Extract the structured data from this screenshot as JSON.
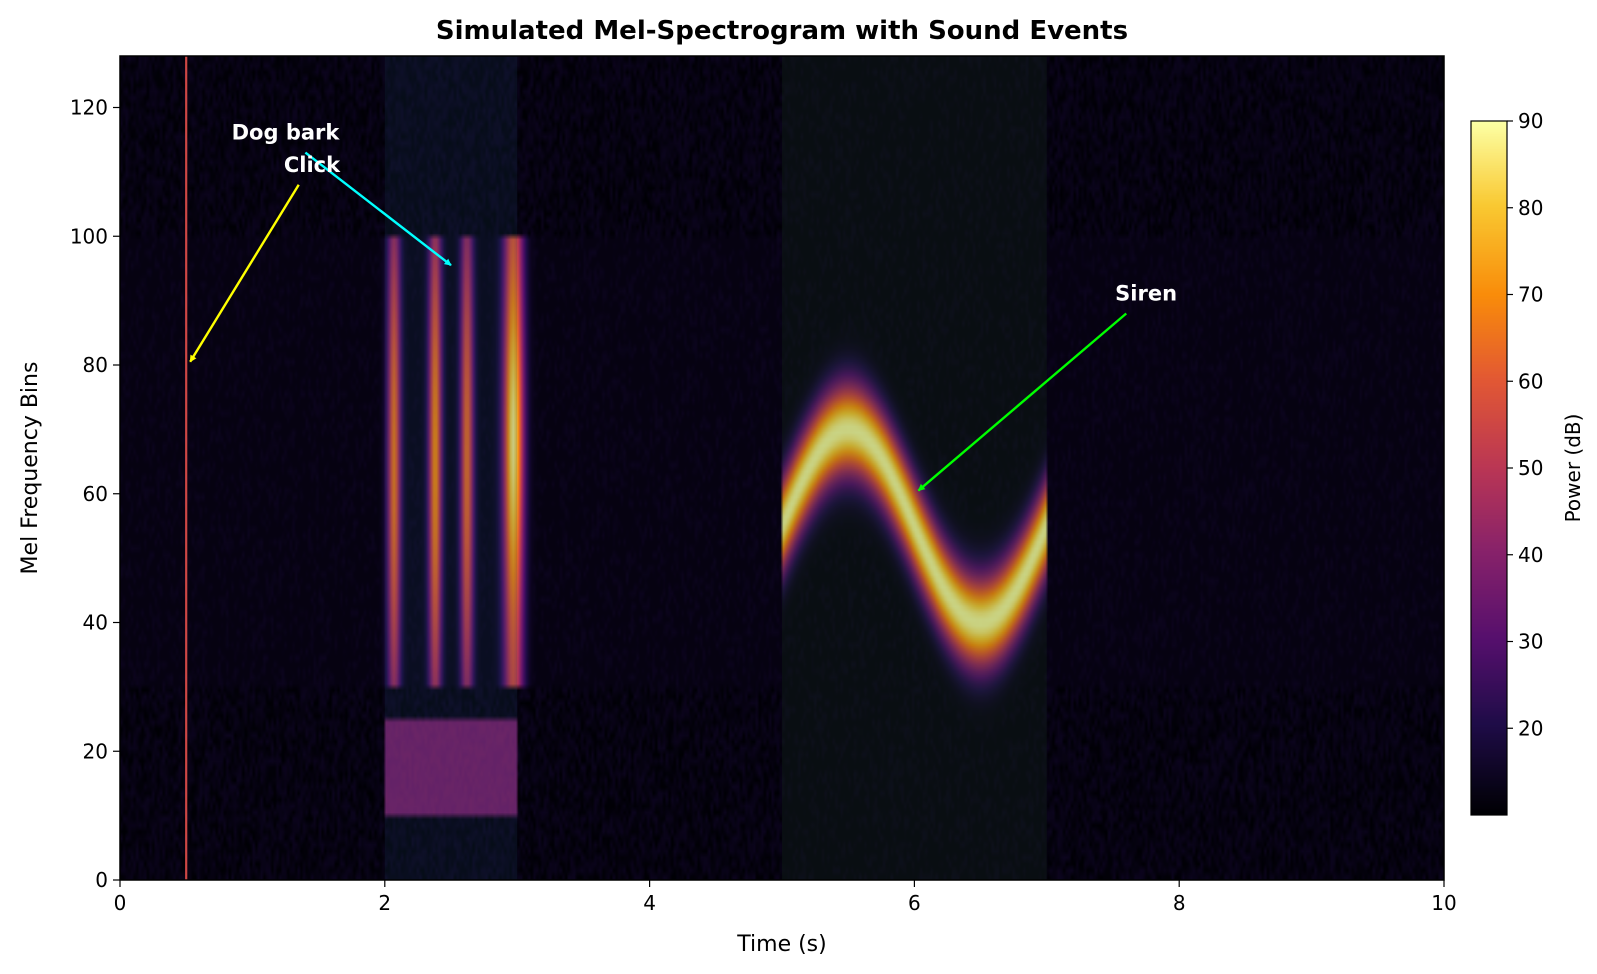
{
  "chart_data": {
    "type": "heatmap",
    "title": "Simulated Mel-Spectrogram with Sound Events",
    "xlabel": "Time (s)",
    "ylabel": "Mel Frequency Bins",
    "xlim": [
      0,
      10
    ],
    "ylim": [
      0,
      128
    ],
    "x_ticks": [
      "0",
      "2",
      "4",
      "6",
      "8",
      "10"
    ],
    "y_ticks": [
      "0",
      "20",
      "40",
      "60",
      "80",
      "100",
      "120"
    ],
    "colormap": "inferno",
    "background_db": 12,
    "colorbar": {
      "label": "Power (dB)",
      "range": [
        10,
        90
      ],
      "ticks": [
        "20",
        "30",
        "40",
        "50",
        "60",
        "70",
        "80",
        "90"
      ]
    },
    "events": [
      {
        "kind": "click",
        "time": 0.5,
        "bins": [
          0,
          128
        ],
        "db": 55
      },
      {
        "kind": "bark-harmonics",
        "times": [
          2.07,
          2.38,
          2.62,
          2.97
        ],
        "bins": [
          30,
          100
        ],
        "db_peak": [
          68,
          72,
          66,
          88
        ]
      },
      {
        "kind": "bark-low-band",
        "time_range": [
          2.0,
          3.0
        ],
        "bins": [
          10,
          25
        ],
        "db": 38
      },
      {
        "kind": "siren",
        "time_range": [
          5.0,
          7.0
        ],
        "center_bin": 55,
        "amplitude_bins": 15,
        "period_s": 2.0,
        "db": 90
      }
    ],
    "highlights": [
      {
        "time_range": [
          2.0,
          3.0
        ],
        "color": "#1a3a5a"
      },
      {
        "time_range": [
          5.0,
          7.0
        ],
        "color": "#163a16"
      }
    ],
    "annotations": [
      {
        "text": "Dog bark",
        "text_pos": [
          1.25,
          115
        ],
        "arrow_to": [
          2.5,
          95.5
        ],
        "color": "#00ffff"
      },
      {
        "text": "Click",
        "text_pos": [
          1.45,
          110
        ],
        "arrow_to": [
          0.53,
          80.5
        ],
        "color": "#ffff00"
      },
      {
        "text": "Siren",
        "text_pos": [
          7.75,
          90
        ],
        "arrow_to": [
          6.03,
          60.5
        ],
        "color": "#00ff00"
      }
    ]
  }
}
